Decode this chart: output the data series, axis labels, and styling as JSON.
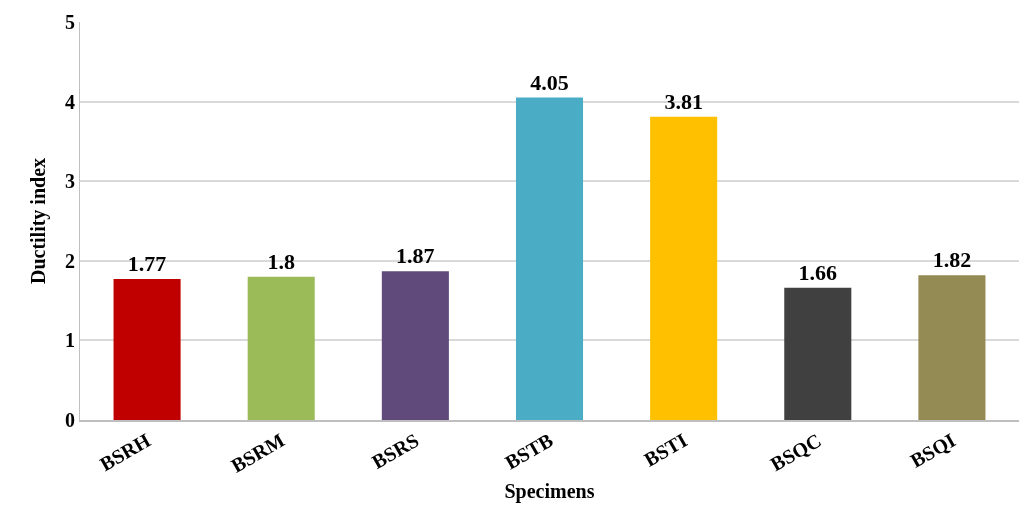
{
  "chart_data": {
    "type": "bar",
    "xlabel": "Specimens",
    "ylabel": "Ductility index",
    "categories": [
      "BSRH",
      "BSRM",
      "BSRS",
      "BSTB",
      "BSTI",
      "BSQC",
      "BSQI"
    ],
    "values": [
      1.77,
      1.8,
      1.87,
      4.05,
      3.81,
      1.66,
      1.82
    ],
    "colors": [
      "#c00000",
      "#9bbb59",
      "#604a7b",
      "#4bacc6",
      "#ffc000",
      "#404040",
      "#948a54"
    ],
    "ylim": [
      0,
      5
    ],
    "yticks": [
      0,
      1,
      2,
      3,
      4,
      5
    ],
    "grid": "y",
    "data_labels": true
  }
}
